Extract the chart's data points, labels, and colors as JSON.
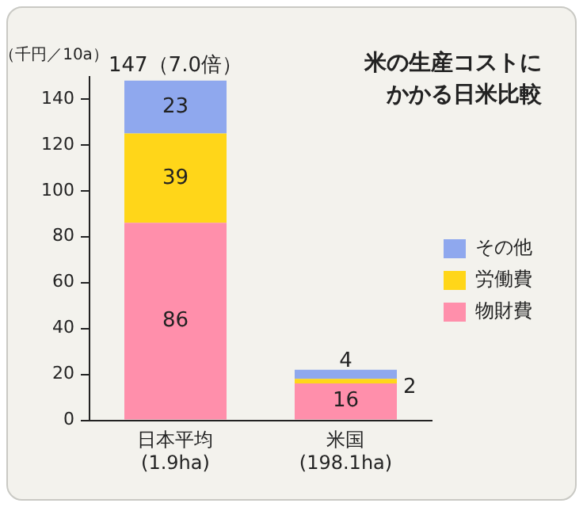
{
  "chart_data": {
    "type": "bar",
    "title": "米の生産コストにかかる日米比較",
    "ylabel": "（千円／10a）",
    "categories": [
      "日本平均\n(1.9ha)",
      "米国\n(198.1ha)"
    ],
    "stacked": true,
    "series": [
      {
        "name": "物財費",
        "color": "#ff8fab",
        "values": [
          86,
          16
        ]
      },
      {
        "name": "労働費",
        "color": "#ffd619",
        "values": [
          39,
          2
        ]
      },
      {
        "name": "その他",
        "color": "#8fa8ee",
        "values": [
          23,
          4
        ]
      }
    ],
    "totals": [
      "147（7.0倍）",
      null
    ],
    "data_labels": true,
    "ylim": [
      0,
      150
    ],
    "yticks": [
      0,
      20,
      40,
      60,
      80,
      100,
      120,
      140
    ],
    "grid": false,
    "legend": "right"
  }
}
